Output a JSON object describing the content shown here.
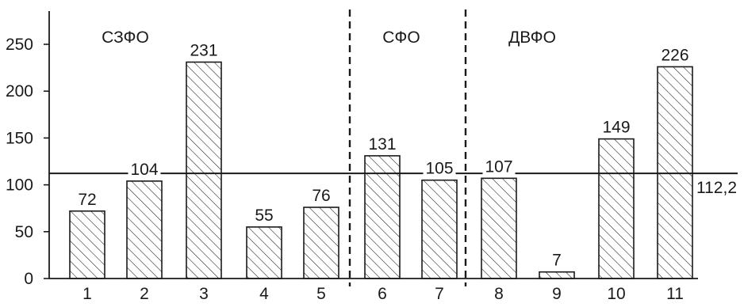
{
  "chart_data": {
    "type": "bar",
    "categories": [
      "1",
      "2",
      "3",
      "4",
      "5",
      "6",
      "7",
      "8",
      "9",
      "10",
      "11"
    ],
    "values": [
      72,
      104,
      231,
      55,
      76,
      131,
      105,
      107,
      7,
      149,
      226
    ],
    "data_labels": [
      "72",
      "104",
      "231",
      "55",
      "76",
      "131",
      "105",
      "107",
      "7",
      "149",
      "226"
    ],
    "y_ticks": [
      0,
      50,
      100,
      150,
      200,
      250
    ],
    "y_tick_labels": [
      "0",
      "50",
      "100",
      "150",
      "200",
      "250"
    ],
    "ylim": [
      0,
      275
    ],
    "bar_fill": "hatched",
    "groups": [
      {
        "label": "СЗФО",
        "first": 0,
        "last": 4
      },
      {
        "label": "СФО",
        "first": 5,
        "last": 6
      },
      {
        "label": "ДВФО",
        "first": 7,
        "last": 10
      }
    ],
    "reference_line": {
      "value": 112.2,
      "label": "112,2"
    },
    "colors": {
      "bar_stroke": "#1a1a1a",
      "hatch": "#1a1a1a",
      "axis": "#1a1a1a",
      "reference_line": "#1a1a1a"
    }
  }
}
